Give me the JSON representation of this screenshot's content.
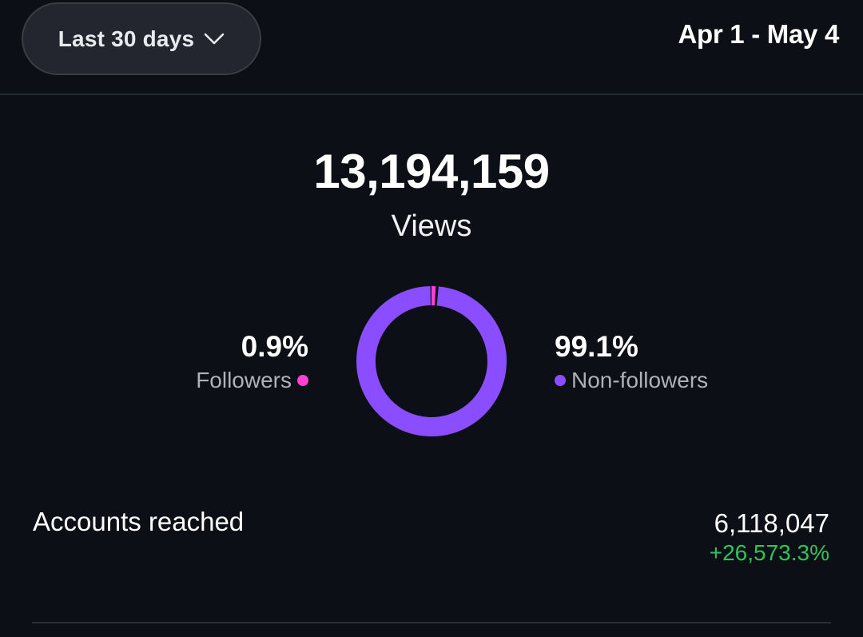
{
  "header": {
    "range_button_label": "Last 30 days",
    "date_range": "Apr 1 - May 4"
  },
  "summary": {
    "total_views": "13,194,159",
    "total_label": "Views"
  },
  "audience": {
    "followers": {
      "value": "0.9%",
      "label": "Followers",
      "fraction": 0.009,
      "color": "#ff3fd2"
    },
    "non_followers": {
      "value": "99.1%",
      "label": "Non-followers",
      "fraction": 0.991,
      "color": "#8a4dff"
    }
  },
  "metrics": {
    "accounts_reached": {
      "label": "Accounts reached",
      "value": "6,118,047",
      "change": "+26,573.3%",
      "change_color": "#2fc35a"
    }
  },
  "icons": {
    "range_chevron": "chevron-down-icon"
  }
}
